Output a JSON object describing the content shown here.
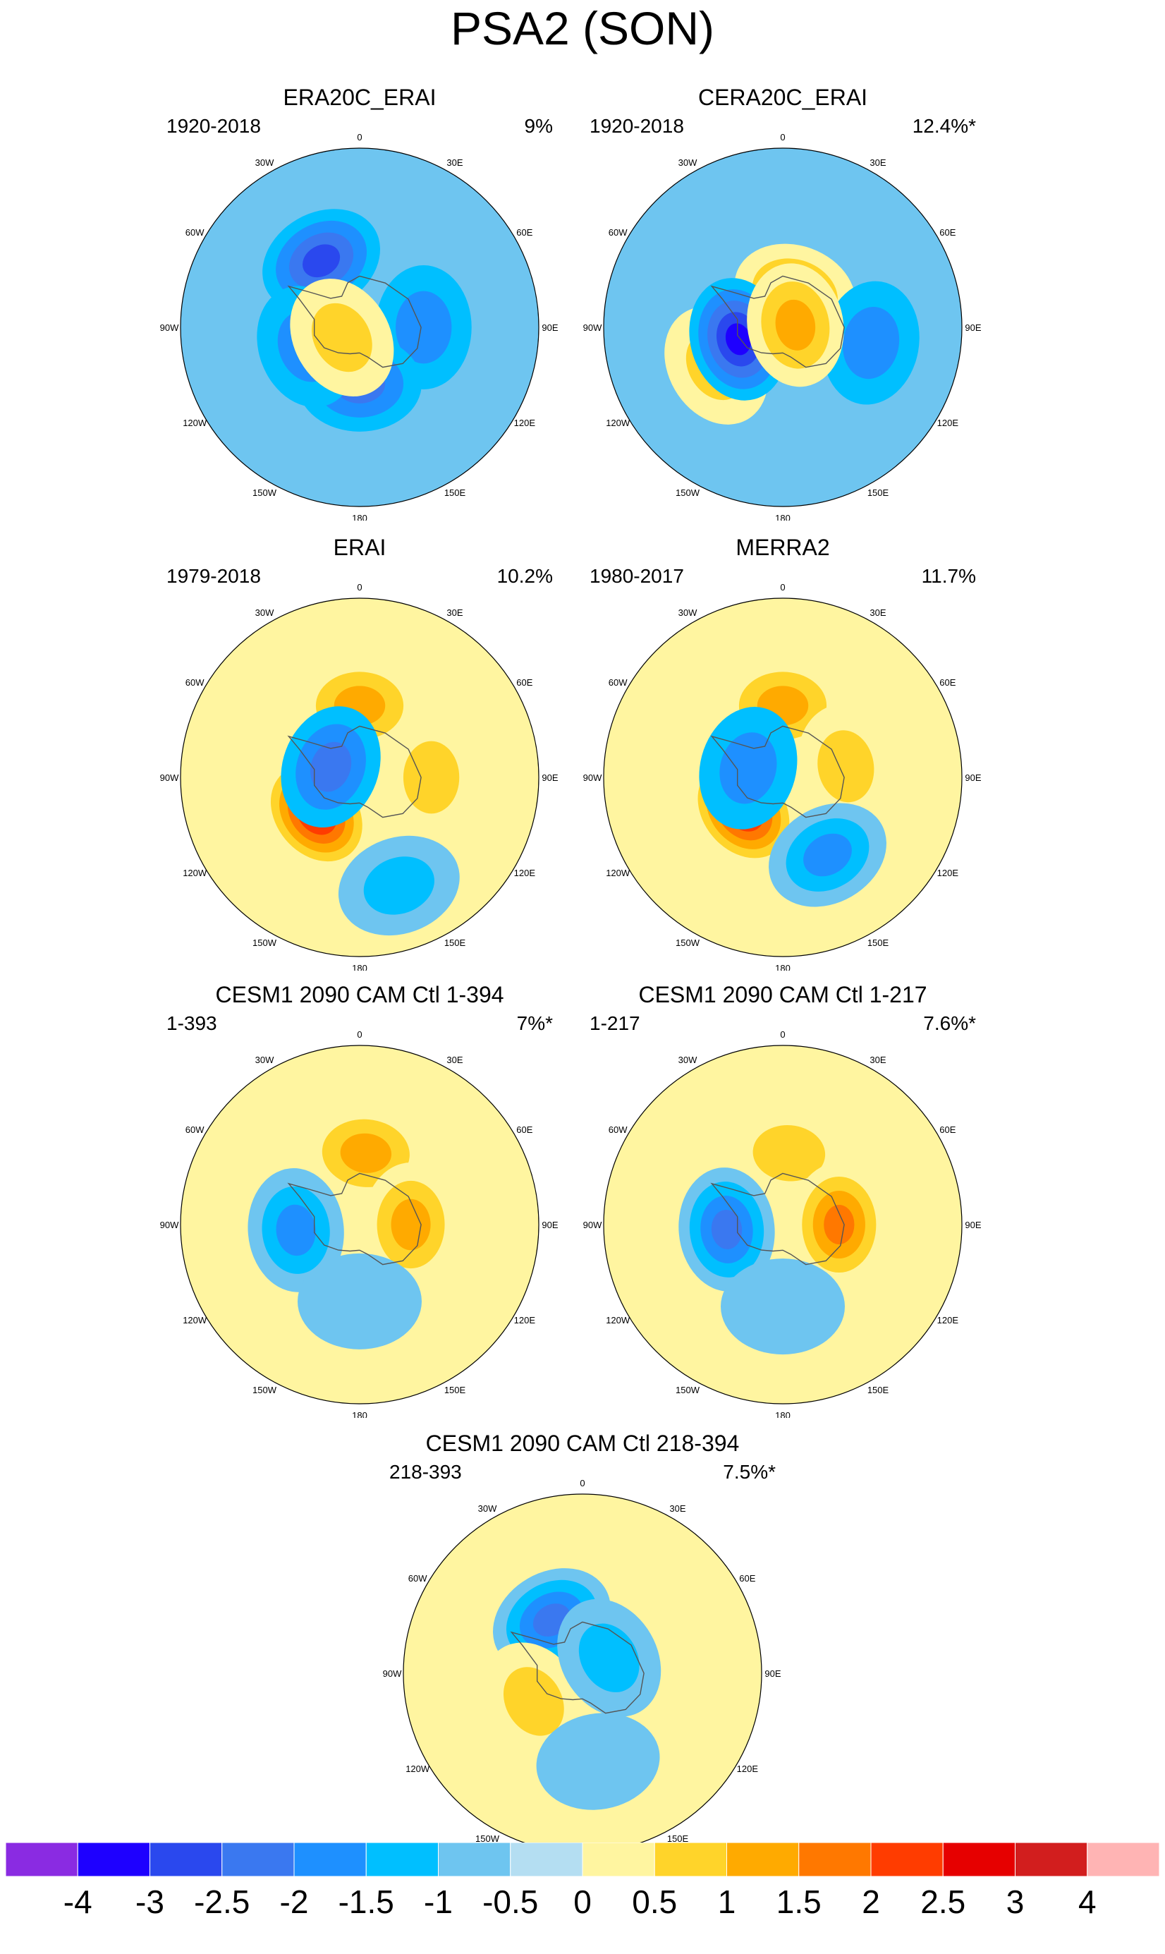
{
  "title": "PSA2 (SON)",
  "colorbar": {
    "labels": [
      "-4",
      "-3",
      "-2.5",
      "-2",
      "-1.5",
      "-1",
      "-0.5",
      "0",
      "0.5",
      "1",
      "1.5",
      "2",
      "2.5",
      "3",
      "4"
    ],
    "colors": [
      "#8A2BE2",
      "#1E00FF",
      "#2A48EE",
      "#3A78F0",
      "#1E90FF",
      "#00BFFF",
      "#6EC5F0",
      "#B4DEF2",
      "#FFF5A0",
      "#FFD42A",
      "#FFAA00",
      "#FF7800",
      "#FF3C00",
      "#E60000",
      "#D21E1E",
      "#FFB4B4"
    ]
  },
  "lon_labels": [
    "0",
    "30E",
    "60E",
    "90E",
    "120E",
    "150E",
    "180",
    "150W",
    "120W",
    "90W",
    "60W",
    "30W"
  ],
  "panels": [
    {
      "title": "ERA20C_ERAI",
      "range": "1920-2018",
      "percent": "9%",
      "background_level": -0.5,
      "blobs": [
        {
          "lon": 330,
          "colat": 30,
          "levels": [
            -1,
            -1.5,
            -2,
            -2.5
          ]
        },
        {
          "lon": 90,
          "colat": 25,
          "levels": [
            -1,
            -1.5
          ]
        },
        {
          "lon": 180,
          "colat": 22,
          "levels": [
            -1,
            -1.5,
            -2
          ]
        },
        {
          "lon": 250,
          "colat": 22,
          "levels": [
            -1,
            -1.5
          ]
        },
        {
          "lon": 240,
          "colat": 8,
          "levels": [
            0.5,
            1
          ]
        }
      ]
    },
    {
      "title": "CERA20C_ERAI",
      "range": "1920-2018",
      "percent": "12.4%*",
      "background_level": -0.5,
      "blobs": [
        {
          "lon": 20,
          "colat": 14,
          "levels": [
            0.5,
            1,
            1.5
          ]
        },
        {
          "lon": 240,
          "colat": 30,
          "levels": [
            0.5,
            1
          ]
        },
        {
          "lon": 255,
          "colat": 18,
          "levels": [
            -1,
            -1.5,
            -2,
            -2.5,
            -3
          ]
        },
        {
          "lon": 100,
          "colat": 35,
          "levels": [
            -1,
            -1.5
          ]
        },
        {
          "lon": 80,
          "colat": 5,
          "levels": [
            0.5,
            1,
            1.5
          ]
        }
      ]
    },
    {
      "title": "ERAI",
      "range": "1979-2018",
      "percent": "10.2%",
      "background_level": 0.5,
      "blobs": [
        {
          "lon": 0,
          "colat": 28,
          "levels": [
            0.5,
            1,
            1.5
          ]
        },
        {
          "lon": 90,
          "colat": 28,
          "levels": [
            0.5,
            1
          ]
        },
        {
          "lon": 230,
          "colat": 22,
          "levels": [
            0.5,
            1,
            1.5,
            2,
            2.5,
            3
          ]
        },
        {
          "lon": 290,
          "colat": 12,
          "levels": [
            -1,
            -1.5,
            -2
          ]
        },
        {
          "lon": 160,
          "colat": 45,
          "levels": [
            -0.5,
            -1
          ]
        }
      ]
    },
    {
      "title": "MERRA2",
      "range": "1980-2017",
      "percent": "11.7%",
      "background_level": 0.5,
      "blobs": [
        {
          "lon": 0,
          "colat": 28,
          "levels": [
            0.5,
            1,
            1.5
          ]
        },
        {
          "lon": 80,
          "colat": 25,
          "levels": [
            0.5,
            1
          ]
        },
        {
          "lon": 230,
          "colat": 20,
          "levels": [
            0.5,
            1,
            1.5,
            2,
            2.5,
            3
          ]
        },
        {
          "lon": 285,
          "colat": 14,
          "levels": [
            -1,
            -1.5
          ]
        },
        {
          "lon": 150,
          "colat": 35,
          "levels": [
            -0.5,
            -1,
            -1.5
          ]
        }
      ]
    },
    {
      "title": "CESM1 2090 CAM Ctl 1-394",
      "range": "1-393",
      "percent": "7%*",
      "background_level": 0.5,
      "blobs": [
        {
          "lon": 5,
          "colat": 28,
          "levels": [
            0.5,
            1,
            1.5
          ]
        },
        {
          "lon": 90,
          "colat": 20,
          "levels": [
            0.5,
            1,
            1.5
          ]
        },
        {
          "lon": 265,
          "colat": 25,
          "levels": [
            -0.5,
            -1,
            -1.5
          ]
        },
        {
          "lon": 180,
          "colat": 30,
          "levels": [
            -0.5
          ]
        }
      ]
    },
    {
      "title": "CESM1 2090 CAM Ctl 1-217",
      "range": "1-217",
      "percent": "7.6%*",
      "background_level": 0.5,
      "blobs": [
        {
          "lon": 5,
          "colat": 28,
          "levels": [
            0.5,
            1
          ]
        },
        {
          "lon": 90,
          "colat": 22,
          "levels": [
            0.5,
            1,
            1.5,
            2
          ]
        },
        {
          "lon": 265,
          "colat": 22,
          "levels": [
            -0.5,
            -1,
            -1.5,
            -2
          ]
        },
        {
          "lon": 180,
          "colat": 32,
          "levels": [
            -0.5
          ]
        }
      ]
    },
    {
      "title": "CESM1 2090 CAM Ctl 218-394",
      "range": "218-393",
      "percent": "7.5%*",
      "background_level": 0.5,
      "blobs": [
        {
          "lon": 330,
          "colat": 24,
          "levels": [
            -0.5,
            -1,
            -1.5,
            -2
          ]
        },
        {
          "lon": 240,
          "colat": 22,
          "levels": [
            0.5,
            1
          ]
        },
        {
          "lon": 170,
          "colat": 35,
          "levels": [
            -0.5
          ]
        },
        {
          "lon": 60,
          "colat": 12,
          "levels": [
            -0.5,
            -1
          ]
        }
      ]
    }
  ]
}
